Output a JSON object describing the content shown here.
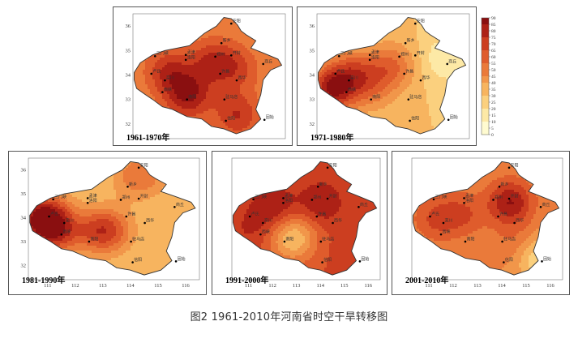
{
  "caption": "图2 1961-2010年河南省时空干旱转移图",
  "legend_ticks": [
    "90",
    "85",
    "80",
    "75",
    "70",
    "65",
    "60",
    "55",
    "50",
    "45",
    "40",
    "35",
    "30",
    "25",
    "20",
    "15",
    "10",
    "5",
    "0"
  ],
  "colors": {
    "scale": [
      "#fffbd0",
      "#fde9a6",
      "#fbd07e",
      "#f7b45f",
      "#f1964a",
      "#ea7a3a",
      "#df5c2c",
      "#cc3e20",
      "#ad2116",
      "#8a0f10"
    ],
    "frame": "#555555",
    "station": "#000000"
  },
  "axis_ticks": {
    "lat": [
      "36",
      "35",
      "34",
      "33",
      "32"
    ],
    "lon": [
      "111",
      "112",
      "113",
      "114",
      "115",
      "116"
    ]
  },
  "stations": [
    "安阳",
    "新乡",
    "郑州",
    "开封",
    "商丘",
    "三门峡",
    "卢氏",
    "栾川",
    "洛阳",
    "孟津",
    "许昌",
    "西华",
    "驻马店",
    "南阳",
    "西峡",
    "信阳",
    "固始"
  ],
  "panels": [
    {
      "label": "1961-1970年",
      "show_lat": true,
      "show_lon": false,
      "base": 5,
      "blobs": [
        {
          "lon": 112.5,
          "lat": 33.2,
          "v": 9
        },
        {
          "lon": 111.7,
          "lat": 34.2,
          "v": 8
        },
        {
          "lon": 113.5,
          "lat": 34.6,
          "v": 8
        },
        {
          "lon": 114.5,
          "lat": 34.3,
          "v": 7
        },
        {
          "lon": 114.5,
          "lat": 32.4,
          "v": 8
        }
      ]
    },
    {
      "label": "1971-1980年",
      "show_lat": true,
      "show_lon": false,
      "base": 3,
      "blobs": [
        {
          "lon": 110.9,
          "lat": 33.5,
          "v": 9
        },
        {
          "lon": 111.8,
          "lat": 34.2,
          "v": 6
        },
        {
          "lon": 113.3,
          "lat": 34.4,
          "v": 6
        },
        {
          "lon": 112.5,
          "lat": 33.5,
          "v": 5
        },
        {
          "lon": 115.5,
          "lat": 34.7,
          "v": 1
        }
      ]
    },
    {
      "label": "1981-1990年",
      "show_lat": true,
      "show_lon": true,
      "base": 3,
      "blobs": [
        {
          "lon": 110.8,
          "lat": 34.1,
          "v": 9
        },
        {
          "lon": 113.0,
          "lat": 33.5,
          "v": 8
        },
        {
          "lon": 111.2,
          "lat": 33.4,
          "v": 7
        },
        {
          "lon": 114.3,
          "lat": 35.8,
          "v": 6
        }
      ]
    },
    {
      "label": "1991-2000年",
      "show_lat": false,
      "show_lon": true,
      "base": 7,
      "blobs": [
        {
          "lon": 112.0,
          "lat": 34.5,
          "v": 9
        },
        {
          "lon": 114.0,
          "lat": 34.7,
          "v": 9
        },
        {
          "lon": 115.5,
          "lat": 32.5,
          "v": 8
        },
        {
          "lon": 112.8,
          "lat": 33.2,
          "v": 3
        },
        {
          "lon": 111.0,
          "lat": 33.6,
          "v": 8
        }
      ]
    },
    {
      "label": "2001-2010年",
      "show_lat": false,
      "show_lon": true,
      "base": 5,
      "blobs": [
        {
          "lon": 114.3,
          "lat": 34.7,
          "v": 9
        },
        {
          "lon": 112.3,
          "lat": 34.2,
          "v": 7
        },
        {
          "lon": 111.2,
          "lat": 34.0,
          "v": 7
        },
        {
          "lon": 114.5,
          "lat": 33.0,
          "v": 6
        },
        {
          "lon": 115.5,
          "lat": 32.3,
          "v": 2
        }
      ]
    }
  ]
}
